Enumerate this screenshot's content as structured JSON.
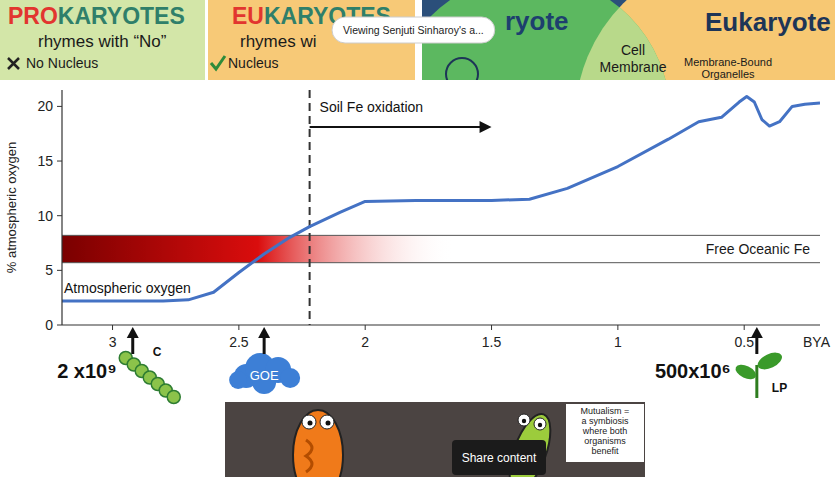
{
  "chart_data": {
    "type": "line",
    "x_label": "BYA",
    "y_label": "% atmospheric oxygen",
    "xlim": [
      3.2,
      0.2
    ],
    "xticks": [
      3,
      2.5,
      2,
      1.5,
      1,
      0.5
    ],
    "ylim": [
      0,
      21.5
    ],
    "yticks": [
      0,
      5,
      10,
      15,
      20
    ],
    "grid": false,
    "series": [
      {
        "name": "Atmospheric oxygen",
        "color": "#4472c4",
        "x": [
          3.2,
          3.0,
          2.8,
          2.7,
          2.6,
          2.5,
          2.4,
          2.3,
          2.22,
          2.1,
          2.0,
          1.8,
          1.5,
          1.35,
          1.2,
          1.0,
          0.8,
          0.68,
          0.59,
          0.52,
          0.49,
          0.46,
          0.43,
          0.4,
          0.36,
          0.31,
          0.26,
          0.2
        ],
        "values": [
          2.2,
          2.2,
          2.2,
          2.3,
          3.0,
          4.8,
          6.5,
          8.0,
          9.0,
          10.3,
          11.3,
          11.4,
          11.4,
          11.5,
          12.5,
          14.5,
          17.0,
          18.6,
          19.0,
          20.4,
          20.9,
          20.4,
          18.8,
          18.2,
          18.6,
          20.0,
          20.2,
          20.3
        ]
      }
    ],
    "bands": [
      {
        "label": "Free Oceanic Fe",
        "ylim": [
          5.7,
          8.2
        ],
        "x_end": 1.65,
        "color": "#7a0000"
      }
    ],
    "markers": [
      {
        "label": "Soil Fe oxidation",
        "x": 2.22,
        "arrow_to": 1.5
      }
    ],
    "events": [
      {
        "x": 2.92,
        "label": "C",
        "annotation": "2 x10⁹"
      },
      {
        "x": 2.4,
        "label": "GOE"
      },
      {
        "x": 0.45,
        "label": "LP",
        "annotation": "500x10⁶"
      }
    ]
  },
  "slides": [
    {
      "title": [
        "PRO",
        "KARYOTES"
      ],
      "subtitle": "rhymes with “No”",
      "item": "No Nucleus"
    },
    {
      "title": [
        "EU",
        "KARYOTES"
      ],
      "subtitle": "rhymes wi",
      "item": "Nucleus"
    },
    {
      "left_title": "ryote",
      "right_title": "Eukaryote",
      "center": [
        "Cell",
        "Membrane"
      ],
      "right": [
        "Membrane-Bound",
        "Organelles"
      ]
    }
  ],
  "overlay": {
    "tooltip": "Viewing Senjuti Sinharoy's a...",
    "share": "Share content"
  },
  "video": {
    "caption": [
      "Mutualism =",
      "a symbiosis",
      "where both",
      "organisms",
      "benefit"
    ]
  }
}
